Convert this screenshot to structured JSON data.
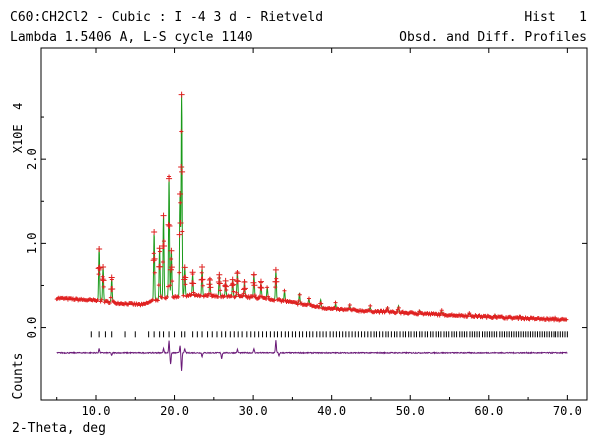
{
  "header": {
    "title_left": "C60:CH2Cl2 - Cubic : I -4 3 d - Rietveld",
    "title_right": "Hist   1",
    "subtitle_left": "Lambda 1.5406 A, L-S cycle 1140",
    "subtitle_right": "Obsd. and Diff. Profiles"
  },
  "chart_data": {
    "type": "line",
    "xlabel": "2-Theta, deg",
    "ylabel_main": "X10E  4",
    "ylabel_lower": "Counts",
    "xlim": [
      3.0,
      72.5
    ],
    "xticks": [
      10,
      20,
      30,
      40,
      50,
      60,
      70
    ],
    "xtick_labels": [
      "10.0",
      "20.0",
      "30.0",
      "40.0",
      "50.0",
      "60.0",
      "70.0"
    ],
    "ylim": [
      -0.86,
      3.32
    ],
    "yticks": [
      0,
      1,
      2
    ],
    "ytick_labels": [
      "0.0",
      "1.0",
      "2.0"
    ],
    "colors": {
      "observed": "#e02020",
      "calculated": "#1a9a1a",
      "difference": "#6a1a78",
      "axes": "#000000"
    },
    "background": [
      [
        5.0,
        0.35
      ],
      [
        10.0,
        0.32
      ],
      [
        13.0,
        0.29
      ],
      [
        16.0,
        0.27
      ],
      [
        17.0,
        0.31
      ],
      [
        19.0,
        0.36
      ],
      [
        22.0,
        0.38
      ],
      [
        26.0,
        0.37
      ],
      [
        30.0,
        0.36
      ],
      [
        33.0,
        0.33
      ],
      [
        36.0,
        0.28
      ],
      [
        40.0,
        0.22
      ],
      [
        46.0,
        0.19
      ],
      [
        55.0,
        0.15
      ],
      [
        62.0,
        0.12
      ],
      [
        70.0,
        0.09
      ]
    ],
    "peaks": [
      {
        "x": 10.4,
        "h": 0.63
      },
      {
        "x": 10.9,
        "h": 0.42
      },
      {
        "x": 12.0,
        "h": 0.28
      },
      {
        "x": 17.4,
        "h": 0.8
      },
      {
        "x": 18.1,
        "h": 0.62
      },
      {
        "x": 18.6,
        "h": 1.0
      },
      {
        "x": 19.3,
        "h": 1.42
      },
      {
        "x": 19.6,
        "h": 0.55
      },
      {
        "x": 20.7,
        "h": 1.2
      },
      {
        "x": 20.9,
        "h": 2.4
      },
      {
        "x": 21.3,
        "h": 0.35
      },
      {
        "x": 22.3,
        "h": 0.26
      },
      {
        "x": 23.5,
        "h": 0.33
      },
      {
        "x": 24.5,
        "h": 0.2
      },
      {
        "x": 25.7,
        "h": 0.26
      },
      {
        "x": 26.5,
        "h": 0.18
      },
      {
        "x": 27.4,
        "h": 0.21
      },
      {
        "x": 28.0,
        "h": 0.3
      },
      {
        "x": 28.9,
        "h": 0.18
      },
      {
        "x": 30.1,
        "h": 0.27
      },
      {
        "x": 31.0,
        "h": 0.18
      },
      {
        "x": 31.8,
        "h": 0.14
      },
      {
        "x": 32.9,
        "h": 0.35
      },
      {
        "x": 34.0,
        "h": 0.12
      },
      {
        "x": 35.9,
        "h": 0.13
      },
      {
        "x": 37.1,
        "h": 0.09
      },
      {
        "x": 38.6,
        "h": 0.09
      },
      {
        "x": 40.5,
        "h": 0.07
      },
      {
        "x": 42.3,
        "h": 0.06
      },
      {
        "x": 44.9,
        "h": 0.05
      },
      {
        "x": 47.1,
        "h": 0.06
      },
      {
        "x": 48.5,
        "h": 0.08
      },
      {
        "x": 51.2,
        "h": 0.04
      },
      {
        "x": 54.0,
        "h": 0.04
      },
      {
        "x": 57.5,
        "h": 0.03
      },
      {
        "x": 60.8,
        "h": 0.03
      },
      {
        "x": 64.0,
        "h": 0.03
      },
      {
        "x": 68.5,
        "h": 0.02
      }
    ],
    "reflection_ticks": [
      9.4,
      10.4,
      11.2,
      12.0,
      13.7,
      15.0,
      16.7,
      17.4,
      18.1,
      18.6,
      19.3,
      20.0,
      20.9,
      21.3,
      22.3,
      22.9,
      23.5,
      24.2,
      24.8,
      25.4,
      26.0,
      26.5,
      27.1,
      27.6,
      28.1,
      28.6,
      29.2,
      29.7,
      30.2,
      30.7,
      31.2,
      31.7,
      32.2,
      32.7,
      33.1,
      33.6,
      34.1,
      34.5,
      35.0,
      35.4,
      35.9,
      36.3,
      36.8,
      37.2,
      37.6,
      38.1,
      38.5,
      38.9,
      39.3,
      39.8,
      40.2,
      40.6,
      41.0,
      41.4,
      41.8,
      42.2,
      42.6,
      43.0,
      43.4,
      43.8,
      44.2,
      44.6,
      45.0,
      45.4,
      45.7,
      46.1,
      46.5,
      46.9,
      47.2,
      47.6,
      48.0,
      48.3,
      48.7,
      49.1,
      49.4,
      49.8,
      50.1,
      50.5,
      50.8,
      51.2,
      51.5,
      51.9,
      52.2,
      52.6,
      52.9,
      53.3,
      53.6,
      53.9,
      54.3,
      54.6,
      54.9,
      55.3,
      55.6,
      55.9,
      56.3,
      56.6,
      56.9,
      57.2,
      57.6,
      57.9,
      58.2,
      58.5,
      58.8,
      59.2,
      59.5,
      59.8,
      60.1,
      60.4,
      60.7,
      61.0,
      61.4,
      61.7,
      62.0,
      62.3,
      62.6,
      62.9,
      63.2,
      63.5,
      63.8,
      64.1,
      64.4,
      64.7,
      65.0,
      65.3,
      65.6,
      65.9,
      66.2,
      66.5,
      66.8,
      67.1,
      67.4,
      67.7,
      68.0,
      68.3,
      68.5,
      68.8,
      69.1,
      69.4,
      69.7,
      70.0
    ],
    "difference_baseline": -0.3,
    "difference_spikes": [
      {
        "x": 10.4,
        "d": 0.05
      },
      {
        "x": 12.0,
        "d": -0.03
      },
      {
        "x": 18.6,
        "d": 0.06
      },
      {
        "x": 19.3,
        "d": 0.15
      },
      {
        "x": 19.5,
        "d": -0.14
      },
      {
        "x": 20.7,
        "d": 0.09
      },
      {
        "x": 20.9,
        "d": -0.22
      },
      {
        "x": 21.3,
        "d": 0.05
      },
      {
        "x": 23.5,
        "d": -0.05
      },
      {
        "x": 26.0,
        "d": -0.07
      },
      {
        "x": 28.0,
        "d": 0.04
      },
      {
        "x": 30.1,
        "d": 0.05
      },
      {
        "x": 32.9,
        "d": 0.15
      },
      {
        "x": 33.3,
        "d": -0.04
      }
    ]
  }
}
